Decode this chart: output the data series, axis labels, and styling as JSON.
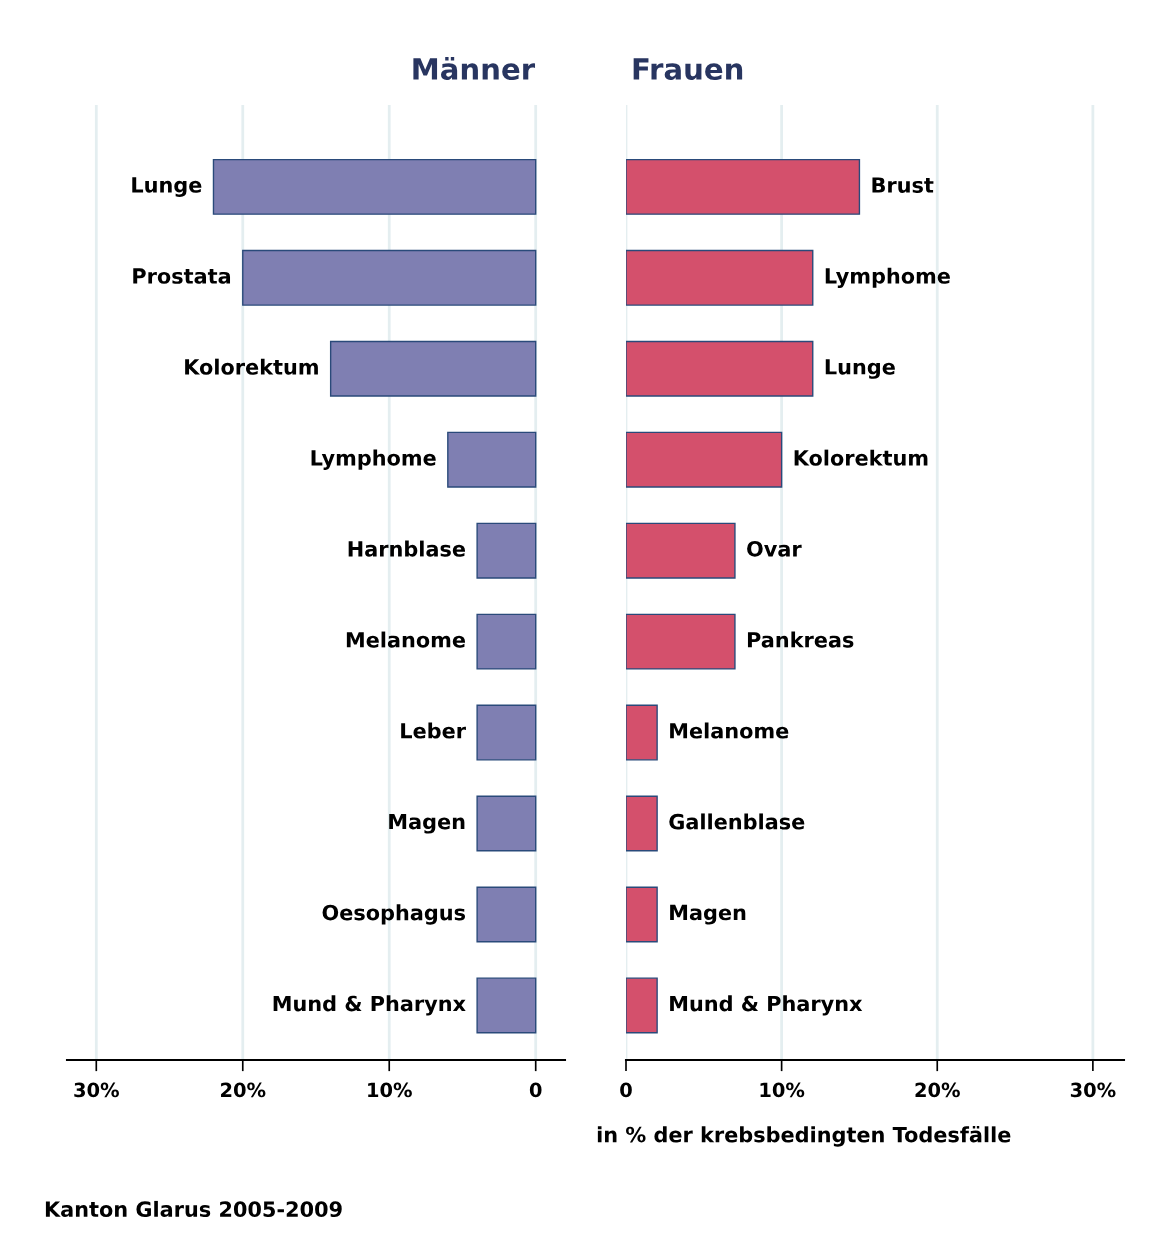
{
  "chart_data": [
    {
      "type": "bar",
      "orientation": "horizontal",
      "title": "Männer",
      "categories": [
        "Lunge",
        "Prostata",
        "Kolorektum",
        "Lymphome",
        "Harnblase",
        "Melanome",
        "Leber",
        "Magen",
        "Oesophagus",
        "Mund & Pharynx"
      ],
      "values": [
        22,
        20,
        14,
        6,
        4,
        4,
        4,
        4,
        4,
        4
      ],
      "color": "#7f7fb2",
      "xlim": [
        32,
        -2
      ],
      "xticks": [
        {
          "value": 30,
          "label": "30%"
        },
        {
          "value": 20,
          "label": "20%"
        },
        {
          "value": 10,
          "label": "10%"
        },
        0
      ],
      "grid": "x",
      "tick_labels": "x",
      "annotations": [
        "Kanton Glarus 2005-2009"
      ]
    },
    {
      "type": "bar",
      "orientation": "horizontal",
      "title": "Frauen",
      "xlabel": "in % der krebsbedingten Todesfälle",
      "categories": [
        "Brust",
        "Lymphome",
        "Lunge",
        "Kolorektum",
        "Ovar",
        "Pankreas",
        "Melanome",
        "Gallenblase",
        "Magen",
        "Mund & Pharynx"
      ],
      "values": [
        15,
        12,
        12,
        10,
        7,
        7,
        2,
        2,
        2,
        2
      ],
      "color": "#d4506c",
      "xlim": [
        0,
        32
      ],
      "xticks": [
        0,
        {
          "value": 10,
          "label": "10%"
        },
        {
          "value": 20,
          "label": "20%"
        },
        {
          "value": 30,
          "label": "30%"
        }
      ],
      "grid": "x",
      "tick_labels": "x"
    }
  ]
}
